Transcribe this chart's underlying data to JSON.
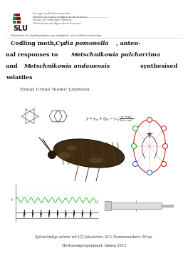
{
  "bg_color": "#ffffff",
  "slu_text_line1": "Sveriges lantbruksuniversitet",
  "slu_text_line2": "Swedish University of Agricultural Sciences",
  "faculty_line1": "Faculty of Landscape Planning,",
  "faculty_line2": "Horticulture and Agricultural Sciences",
  "fakulteten_text": "Fakulteten för landskapsplanering, trädgårds- och jordbruksvetenskap",
  "author": "Tobias Urban Teodor Lindblom",
  "footer_line1": "Självständigt arbete vid LTJ-fakulteten, SLU Examensarbete 30 hp.",
  "footer_line2": "Hortonomprogrammet, Alnarp 2012",
  "title_fontsize": 5.8,
  "author_fontsize": 4.5,
  "small_fontsize": 2.6,
  "footer_fontsize": 3.5
}
